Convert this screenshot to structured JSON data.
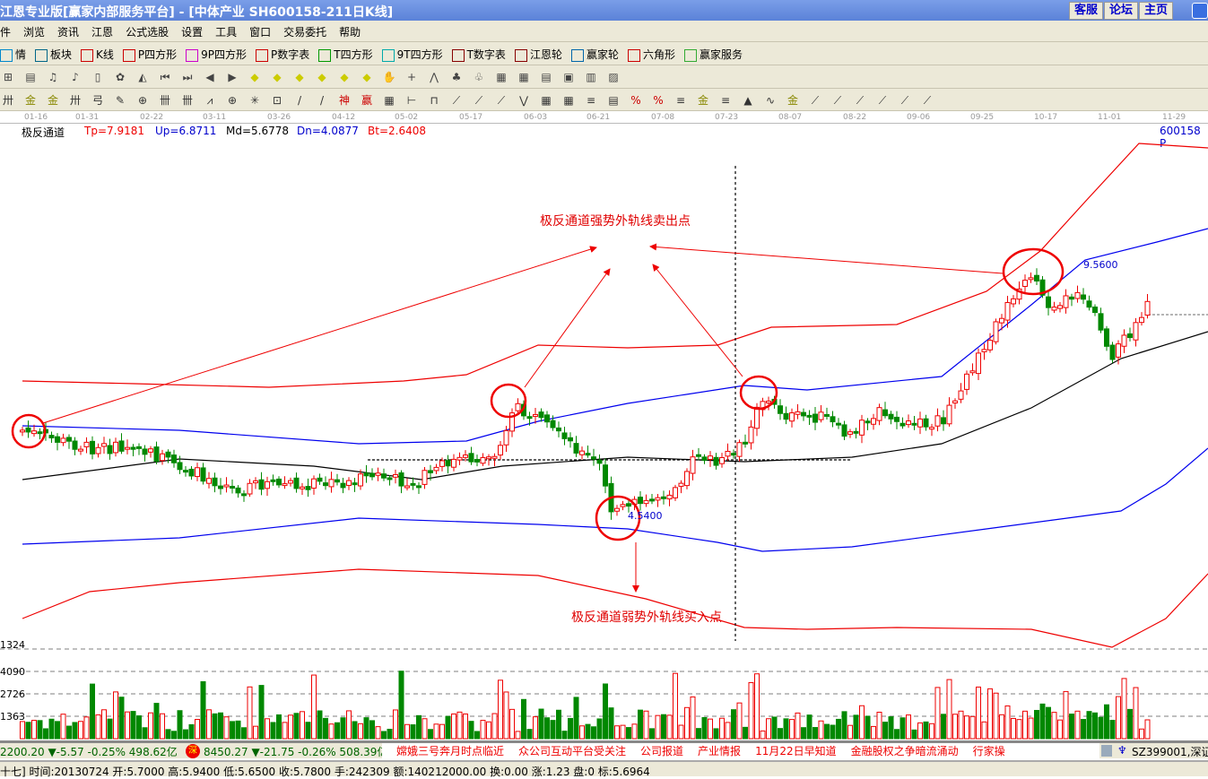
{
  "window": {
    "title": "江恩专业版[赢家内部服务平台] - [中体产业   SH600158-211日K线]",
    "buttons": [
      "客服",
      "论坛",
      "主页"
    ]
  },
  "menu": [
    "件",
    "浏览",
    "资讯",
    "江恩",
    "公式选股",
    "设置",
    "工具",
    "窗口",
    "交易委托",
    "帮助"
  ],
  "toolbar1": [
    {
      "icon": "ps",
      "label": "情"
    },
    {
      "icon": "grid",
      "label": "板块"
    },
    {
      "icon": "kline",
      "label": "K线"
    },
    {
      "icon": "PS",
      "label": "P四方形"
    },
    {
      "icon": "P9",
      "label": "9P四方形"
    },
    {
      "icon": "PN",
      "label": "P数字表"
    },
    {
      "icon": "TS",
      "label": "T四方形"
    },
    {
      "icon": "T9",
      "label": "9T四方形"
    },
    {
      "icon": "TN",
      "label": "T数字表"
    },
    {
      "icon": "wheel",
      "label": "江恩轮"
    },
    {
      "icon": "Big",
      "label": "赢家轮"
    },
    {
      "icon": "hexagon",
      "label": "六角形"
    },
    {
      "icon": "$",
      "label": "赢家服务"
    }
  ],
  "date_axis": [
    "01-16",
    "01-31",
    "02-22",
    "03-11",
    "03-26",
    "04-12",
    "05-02",
    "05-17",
    "06-03",
    "06-21",
    "07-08",
    "07-23",
    "08-07",
    "08-22",
    "09-06",
    "09-25",
    "10-17",
    "11-01",
    "11-29"
  ],
  "indicator": {
    "name": "极反通道",
    "tp": "Tp=7.9181",
    "up": "Up=6.8711",
    "md": "Md=5.6778",
    "dn": "Dn=4.0877",
    "bt": "Bt=2.6408",
    "code": "600158 P"
  },
  "annotations": {
    "sell": "极反通道强势外轨线卖出点",
    "buy": "极反通道弱势外轨线买入点",
    "high_label": "9.5600",
    "low_label": "4.5400"
  },
  "volume_axis": [
    "1324",
    "4090",
    "2726",
    "1363"
  ],
  "ticker": {
    "sh": "2200.20 ▼-5.57 -0.25% 498.62亿",
    "sz_icon": "深",
    "sz": "8450.27 ▼-21.75 -0.26% 508.39亿",
    "news": [
      "嫦娥三号奔月时点临近",
      "众公司互动平台受关注",
      "公司报道",
      "产业情报",
      "11月22日早知道",
      "金融股权之争暗流涌动",
      "行家操"
    ],
    "code": "SZ399001,深证"
  },
  "status": "十七] 时间:20130724 开:5.7000 高:5.9400 低:5.6500 收:5.7800 手:242309 额:140212000.00 换:0.00 涨:1.23 盘:0 标:5.6964",
  "colors": {
    "up": "#ff0000",
    "down": "#008000",
    "title": "#6a90e0",
    "panel": "#ece9d8"
  }
}
